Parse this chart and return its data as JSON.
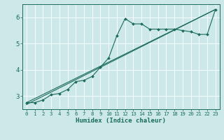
{
  "xlabel": "Humidex (Indice chaleur)",
  "ylabel": "",
  "background_color": "#cce8e8",
  "grid_color": "#ffffff",
  "line_color": "#1a6b5a",
  "xlim": [
    -0.5,
    23.5
  ],
  "ylim": [
    2.5,
    6.5
  ],
  "yticks": [
    3,
    4,
    5,
    6
  ],
  "xticks": [
    0,
    1,
    2,
    3,
    4,
    5,
    6,
    7,
    8,
    9,
    10,
    11,
    12,
    13,
    14,
    15,
    16,
    17,
    18,
    19,
    20,
    21,
    22,
    23
  ],
  "curve1_x": [
    0,
    1,
    2,
    3,
    4,
    5,
    6,
    7,
    8,
    9,
    10,
    11,
    12,
    13,
    14,
    15,
    16,
    17,
    18,
    19,
    20,
    21,
    22,
    23
  ],
  "curve1_y": [
    2.75,
    2.75,
    2.85,
    3.05,
    3.1,
    3.25,
    3.55,
    3.6,
    3.75,
    4.1,
    4.45,
    5.3,
    5.95,
    5.75,
    5.75,
    5.55,
    5.55,
    5.55,
    5.55,
    5.5,
    5.45,
    5.35,
    5.35,
    6.3
  ],
  "line1_x": [
    0,
    23
  ],
  "line1_y": [
    2.75,
    6.3
  ],
  "line2_x": [
    0,
    23
  ],
  "line2_y": [
    2.68,
    6.3
  ]
}
